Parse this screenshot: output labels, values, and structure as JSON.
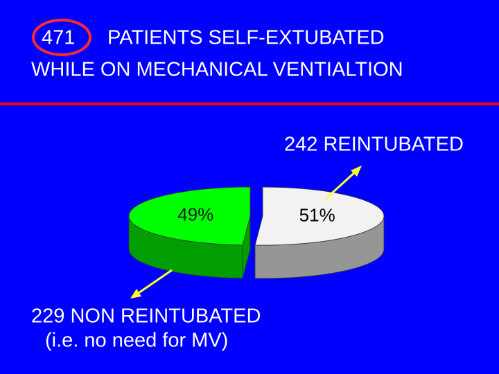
{
  "chart_data": {
    "type": "pie",
    "title_number": "471",
    "title_line1": "PATIENTS SELF-EXTUBATED",
    "title_line2": "WHILE ON MECHANICAL VENTIALTION",
    "values": [
      49,
      51
    ],
    "value_labels": [
      "49%",
      "51%"
    ],
    "colors": [
      "#00ff00",
      "#f2f2f2"
    ],
    "annotations": [
      "242 REINTUBATED",
      "229 NON REINTUBATED",
      "(i.e. no need for MV)"
    ]
  }
}
